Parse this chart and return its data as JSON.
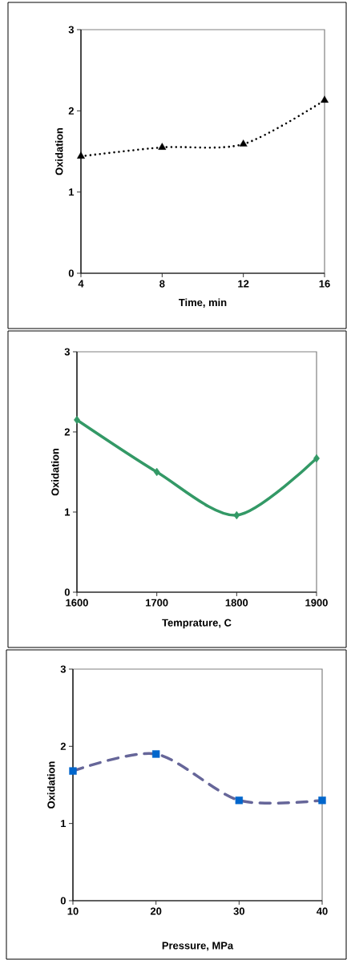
{
  "chart_data": [
    {
      "type": "line",
      "xlabel": "Time, min",
      "ylabel": "Oxidation",
      "x": [
        4,
        8,
        12,
        16
      ],
      "xlim": [
        4,
        16
      ],
      "xticks": [
        4,
        8,
        12,
        16
      ],
      "ylim": [
        0,
        3
      ],
      "yticks": [
        0,
        1,
        2,
        3
      ],
      "grid": false,
      "marker": "triangle",
      "line_style": "dotted",
      "series": [
        {
          "color": "#000000",
          "values": [
            1.44,
            1.55,
            1.59,
            2.13
          ]
        }
      ]
    },
    {
      "type": "line",
      "xlabel": "Temprature, C",
      "ylabel": "Oxidation",
      "x": [
        1600,
        1700,
        1800,
        1900
      ],
      "xlim": [
        1600,
        1900
      ],
      "xticks": [
        1600,
        1700,
        1800,
        1900
      ],
      "ylim": [
        0,
        3
      ],
      "yticks": [
        0,
        1,
        2,
        3
      ],
      "grid": false,
      "marker": "diamond",
      "line_style": "solid",
      "series": [
        {
          "color": "#339966",
          "values": [
            2.15,
            1.5,
            0.96,
            1.67
          ]
        }
      ]
    },
    {
      "type": "line",
      "xlabel": "Pressure, MPa",
      "ylabel": "Oxidation",
      "x": [
        10,
        20,
        30,
        40
      ],
      "xlim": [
        10,
        40
      ],
      "xticks": [
        10,
        20,
        30,
        40
      ],
      "ylim": [
        0,
        3
      ],
      "yticks": [
        0,
        1,
        2,
        3
      ],
      "grid": false,
      "marker": "square",
      "line_style": "dashed",
      "series": [
        {
          "color": "#666699",
          "colors": [
            "#0066cc",
            "#0066cc",
            "#0066cc",
            "#0066cc"
          ],
          "values": [
            1.68,
            1.9,
            1.3,
            1.3
          ]
        }
      ]
    }
  ]
}
